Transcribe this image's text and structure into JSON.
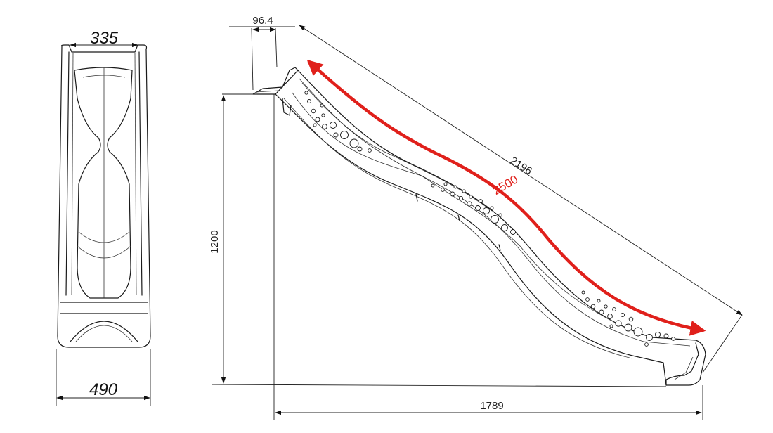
{
  "dimensions": {
    "top_width": "335",
    "bottom_width": "490",
    "lip_length": "96.4",
    "height": "1200",
    "diagonal": "2196",
    "slide_length": "2500",
    "horizontal_length": "1789"
  },
  "colors": {
    "line": "#1a1a1a",
    "highlight": "#e0201b",
    "background": "#ffffff"
  }
}
